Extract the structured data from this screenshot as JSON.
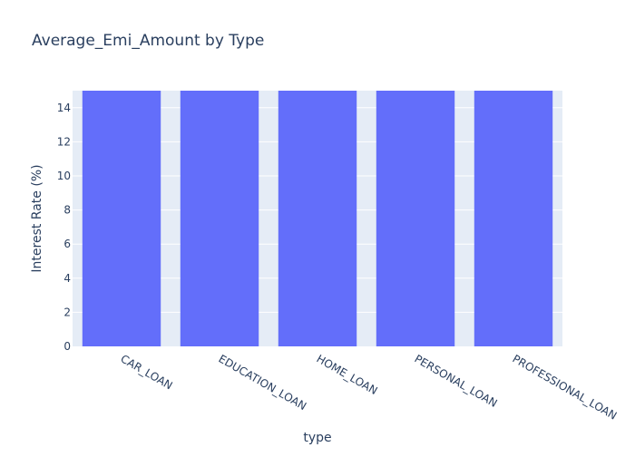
{
  "chart_data": {
    "type": "bar",
    "title": "Average_Emi_Amount by Type",
    "xlabel": "type",
    "ylabel": "Interest Rate (%)",
    "categories": [
      "CAR_LOAN",
      "EDUCATION_LOAN",
      "HOME_LOAN",
      "PERSONAL_LOAN",
      "PROFESSIONAL_LOAN"
    ],
    "values": [
      15,
      15,
      15,
      15,
      15
    ],
    "ylim": [
      0,
      15
    ],
    "yticks": [
      0,
      2,
      4,
      6,
      8,
      10,
      12,
      14
    ],
    "grid": true,
    "legend": "none",
    "colors": {
      "bar": "#636efa",
      "plot_background": "#e5ecf6",
      "grid": "#ffffff",
      "text": "#2a3f5f"
    }
  }
}
